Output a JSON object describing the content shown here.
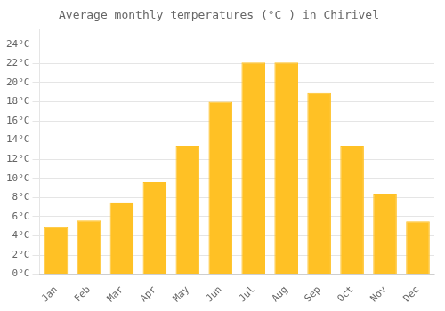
{
  "chart_data": {
    "type": "bar",
    "title": "Average monthly temperatures (°C ) in Chirivel",
    "categories": [
      "Jan",
      "Feb",
      "Mar",
      "Apr",
      "May",
      "Jun",
      "Jul",
      "Aug",
      "Sep",
      "Oct",
      "Nov",
      "Dec"
    ],
    "values": [
      4.9,
      5.6,
      7.5,
      9.6,
      13.4,
      18.0,
      22.1,
      22.1,
      18.9,
      13.4,
      8.4,
      5.5
    ],
    "color": "#FFC125",
    "ylim": [
      0,
      25.5
    ],
    "yticks": [
      {
        "value": 0,
        "label": "0°C"
      },
      {
        "value": 2,
        "label": "2°C"
      },
      {
        "value": 4,
        "label": "4°C"
      },
      {
        "value": 6,
        "label": "6°C"
      },
      {
        "value": 8,
        "label": "8°C"
      },
      {
        "value": 10,
        "label": "10°C"
      },
      {
        "value": 12,
        "label": "12°C"
      },
      {
        "value": 14,
        "label": "14°C"
      },
      {
        "value": 16,
        "label": "16°C"
      },
      {
        "value": 18,
        "label": "18°C"
      },
      {
        "value": 20,
        "label": "20°C"
      },
      {
        "value": 22,
        "label": "22°C"
      },
      {
        "value": 24,
        "label": "24°C"
      }
    ],
    "grid": true
  }
}
